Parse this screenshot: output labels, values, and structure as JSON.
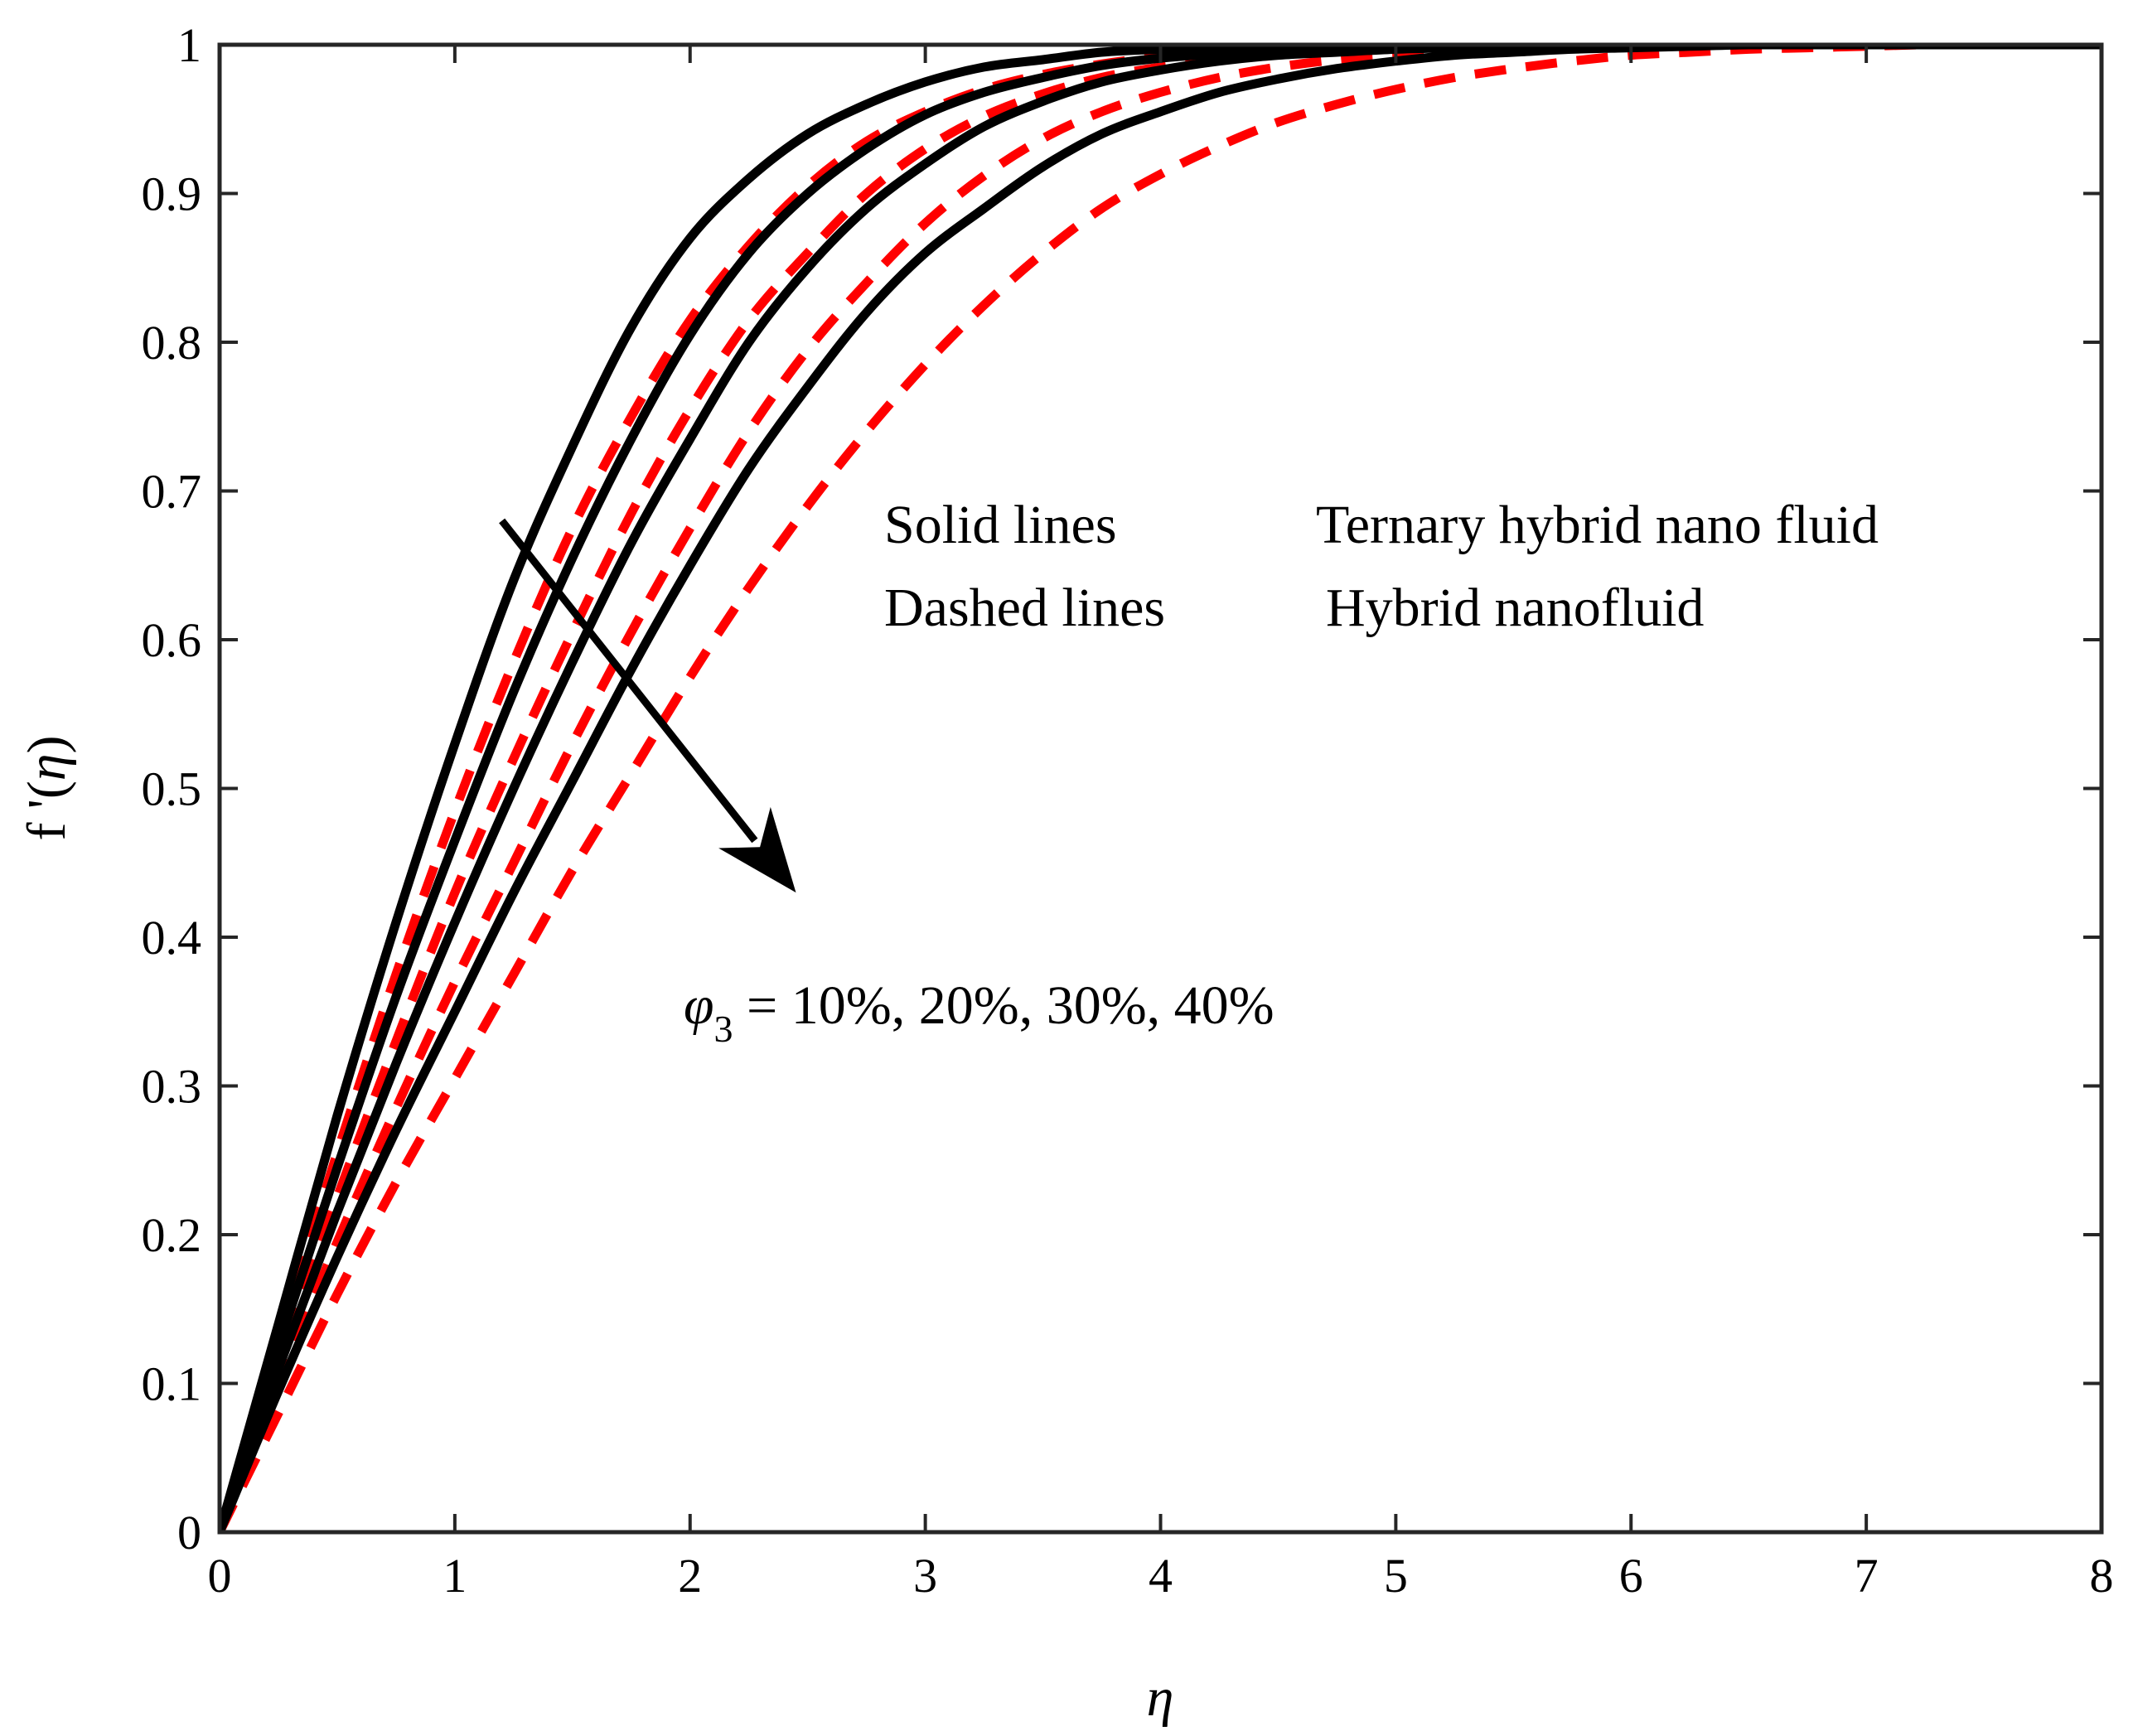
{
  "chart_data": {
    "type": "line",
    "title": "",
    "xlabel": "η",
    "ylabel": "f '(η)",
    "ylabel_prefix": "f '(",
    "ylabel_var": "η",
    "ylabel_suffix": ")",
    "xlim": [
      0,
      8
    ],
    "ylim": [
      0,
      1
    ],
    "xticks": [
      0,
      1,
      2,
      3,
      4,
      5,
      6,
      7,
      8
    ],
    "yticks": [
      0,
      0.1,
      0.2,
      0.3,
      0.4,
      0.5,
      0.6,
      0.7,
      0.8,
      0.9,
      1
    ],
    "xtick_labels": [
      "0",
      "1",
      "2",
      "3",
      "4",
      "5",
      "6",
      "7",
      "8"
    ],
    "ytick_labels": [
      "0",
      "0.1",
      "0.2",
      "0.3",
      "0.4",
      "0.5",
      "0.6",
      "0.7",
      "0.8",
      "0.9",
      "1"
    ],
    "grid": false,
    "x": [
      0,
      0.25,
      0.5,
      0.75,
      1,
      1.25,
      1.5,
      1.75,
      2,
      2.25,
      2.5,
      2.75,
      3,
      3.25,
      3.5,
      3.75,
      4,
      4.25,
      4.5,
      4.75,
      5,
      5.25,
      5.5,
      5.75,
      6,
      6.25,
      6.5,
      6.75,
      7,
      7.25,
      7.5,
      7.75,
      8
    ],
    "series": [
      {
        "name": "Ternary hybrid nano fluid, φ3 = 10%",
        "style": "solid",
        "color": "#000000",
        "values": [
          0,
          0.14,
          0.28,
          0.41,
          0.53,
          0.64,
          0.73,
          0.81,
          0.87,
          0.91,
          0.94,
          0.96,
          0.975,
          0.985,
          0.99,
          0.995,
          0.997,
          0.998,
          0.999,
          0.999,
          1,
          1,
          1,
          1,
          1,
          1,
          1,
          1,
          1,
          1,
          1,
          1,
          1
        ]
      },
      {
        "name": "Hybrid nanofluid, φ3 = 10%",
        "style": "dashed",
        "color": "#ff0000",
        "values": [
          0,
          0.128,
          0.255,
          0.375,
          0.485,
          0.585,
          0.675,
          0.75,
          0.815,
          0.865,
          0.905,
          0.935,
          0.955,
          0.97,
          0.98,
          0.987,
          0.992,
          0.995,
          0.997,
          0.998,
          0.999,
          1,
          1,
          1,
          1,
          1,
          1,
          1,
          1,
          1,
          1,
          1,
          1
        ]
      },
      {
        "name": "Ternary hybrid nano fluid, φ3 = 20%",
        "style": "solid",
        "color": "#000000",
        "values": [
          0,
          0.125,
          0.245,
          0.36,
          0.465,
          0.565,
          0.655,
          0.735,
          0.805,
          0.86,
          0.9,
          0.93,
          0.953,
          0.968,
          0.978,
          0.986,
          0.991,
          0.994,
          0.996,
          0.998,
          0.999,
          1,
          1,
          1,
          1,
          1,
          1,
          1,
          1,
          1,
          1,
          1,
          1
        ]
      },
      {
        "name": "Hybrid nanofluid, φ3 = 20%",
        "style": "dashed",
        "color": "#ff0000",
        "values": [
          0,
          0.115,
          0.225,
          0.33,
          0.43,
          0.52,
          0.605,
          0.685,
          0.755,
          0.815,
          0.86,
          0.9,
          0.93,
          0.952,
          0.967,
          0.978,
          0.985,
          0.99,
          0.993,
          0.996,
          0.997,
          0.998,
          0.999,
          1,
          1,
          1,
          1,
          1,
          1,
          1,
          1,
          1,
          1
        ]
      },
      {
        "name": "Ternary hybrid nano fluid, φ3 = 30%",
        "style": "solid",
        "color": "#000000",
        "values": [
          0,
          0.11,
          0.215,
          0.315,
          0.41,
          0.5,
          0.585,
          0.665,
          0.735,
          0.8,
          0.85,
          0.89,
          0.92,
          0.945,
          0.962,
          0.975,
          0.983,
          0.989,
          0.993,
          0.995,
          0.997,
          0.998,
          0.999,
          1,
          1,
          1,
          1,
          1,
          1,
          1,
          1,
          1,
          1
        ]
      },
      {
        "name": "Hybrid nanofluid, φ3 = 30%",
        "style": "dashed",
        "color": "#ff0000",
        "values": [
          0,
          0.1,
          0.195,
          0.285,
          0.37,
          0.45,
          0.53,
          0.605,
          0.675,
          0.74,
          0.795,
          0.84,
          0.88,
          0.912,
          0.937,
          0.955,
          0.968,
          0.978,
          0.985,
          0.99,
          0.993,
          0.995,
          0.997,
          0.998,
          0.999,
          1,
          1,
          1,
          1,
          1,
          1,
          1,
          1
        ]
      },
      {
        "name": "Ternary hybrid nano fluid, φ3 = 40%",
        "style": "solid",
        "color": "#000000",
        "values": [
          0,
          0.095,
          0.185,
          0.27,
          0.35,
          0.43,
          0.505,
          0.58,
          0.65,
          0.715,
          0.77,
          0.82,
          0.86,
          0.89,
          0.918,
          0.94,
          0.955,
          0.968,
          0.977,
          0.984,
          0.989,
          0.993,
          0.995,
          0.997,
          0.998,
          0.999,
          1,
          1,
          1,
          1,
          1,
          1,
          1
        ]
      },
      {
        "name": "Hybrid nanofluid, φ3 = 40%",
        "style": "dashed",
        "color": "#ff0000",
        "values": [
          0,
          0.08,
          0.16,
          0.235,
          0.305,
          0.375,
          0.445,
          0.51,
          0.575,
          0.635,
          0.69,
          0.74,
          0.785,
          0.825,
          0.86,
          0.89,
          0.913,
          0.932,
          0.948,
          0.96,
          0.97,
          0.978,
          0.984,
          0.989,
          0.993,
          0.995,
          0.997,
          0.998,
          0.999,
          1,
          1,
          1,
          1
        ]
      }
    ],
    "annotations": {
      "solid_label": "Solid lines",
      "solid_desc": "Ternary hybrid nano fluid",
      "dashed_label": "Dashed lines",
      "dashed_desc": "Hybrid nanofluid",
      "phi_symbol": "φ",
      "phi_subscript": "3",
      "phi_values": " = 10%, 20%, 30%, 40%",
      "arrow": {
        "from": [
          1.2,
          0.68
        ],
        "to": [
          2.45,
          0.43
        ]
      }
    }
  }
}
